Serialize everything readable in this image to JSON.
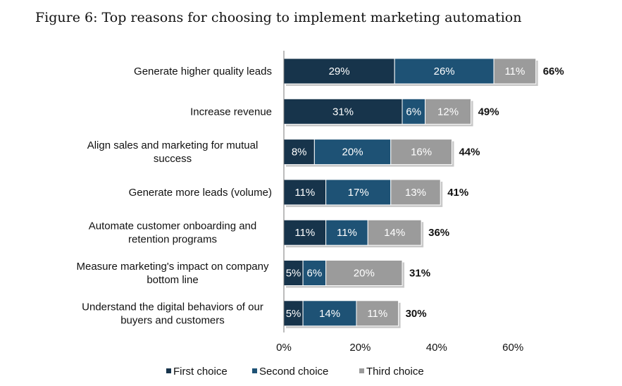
{
  "chart_data": {
    "type": "bar",
    "orientation": "horizontal",
    "stacked": true,
    "title": "Figure 6: Top reasons for choosing to implement marketing automation",
    "categories": [
      [
        "Generate higher quality leads"
      ],
      [
        "Increase revenue"
      ],
      [
        "Align sales and marketing for mutual",
        "success"
      ],
      [
        "Generate more leads (volume)"
      ],
      [
        "Automate customer onboarding and",
        "retention programs"
      ],
      [
        "Measure marketing's impact on company",
        "bottom line"
      ],
      [
        "Understand the digital behaviors of our",
        "buyers and customers"
      ]
    ],
    "series": [
      {
        "name": "First choice",
        "color": "#17344b",
        "values": [
          29,
          31,
          8,
          11,
          11,
          5,
          5
        ]
      },
      {
        "name": "Second choice",
        "color": "#1e5275",
        "values": [
          26,
          6,
          20,
          17,
          11,
          6,
          14
        ]
      },
      {
        "name": "Third choice",
        "color": "#9b9b9b",
        "values": [
          11,
          12,
          16,
          13,
          14,
          20,
          11
        ]
      }
    ],
    "totals": [
      66,
      49,
      44,
      41,
      36,
      31,
      30
    ],
    "segment_label_suffix": "%",
    "total_label_suffix": "%",
    "xlim": [
      0,
      60
    ],
    "xticks": [
      0,
      20,
      40,
      60
    ],
    "xtick_labels": [
      "0%",
      "20%",
      "40%",
      "60%"
    ],
    "legend_position": "bottom",
    "grid": false
  }
}
